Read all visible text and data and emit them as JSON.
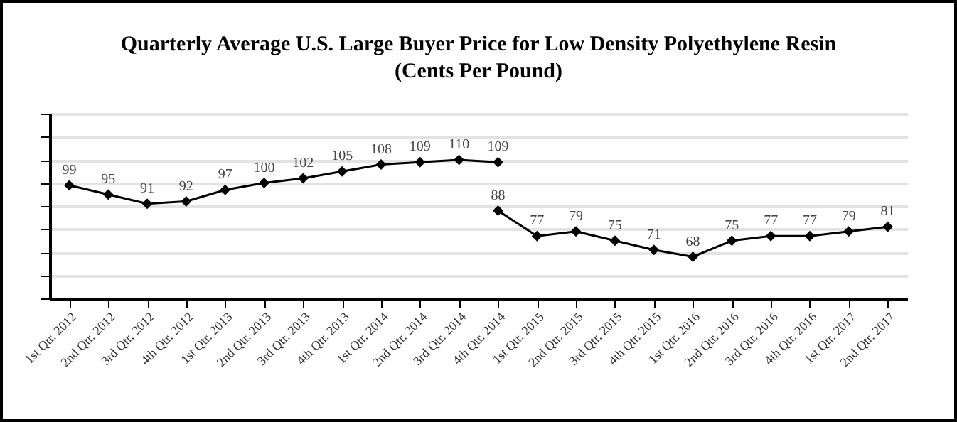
{
  "chart_data": {
    "type": "line",
    "title": "Quarterly Average U.S. Large Buyer Price for Low Density Polyethylene Resin",
    "subtitle": "(Cents Per Pound)",
    "categories": [
      "1st Qtr. 2012",
      "2nd Qtr. 2012",
      "3rd Qtr. 2012",
      "4th Qtr. 2012",
      "1st Qtr. 2013",
      "2nd Qtr. 2013",
      "3rd Qtr. 2013",
      "4th Qtr. 2013",
      "1st Qtr. 2014",
      "2nd Qtr. 2014",
      "3rd Qtr. 2014",
      "4th Qtr. 2014",
      "1st Qtr. 2015",
      "2nd Qtr. 2015",
      "3rd Qtr. 2015",
      "4th Qtr. 2015",
      "1st Qtr. 2016",
      "2nd Qtr. 2016",
      "3rd Qtr. 2016",
      "4th Qtr. 2016",
      "1st Qtr. 2017",
      "2nd Qtr. 2017"
    ],
    "series": [
      {
        "color": "#000000",
        "values": [
          99,
          95,
          91,
          92,
          97,
          100,
          102,
          105,
          108,
          109,
          110,
          109,
          null,
          null,
          null,
          null,
          null,
          null,
          null,
          null,
          null,
          null
        ]
      },
      {
        "color": "#000000",
        "values": [
          null,
          null,
          null,
          null,
          null,
          null,
          null,
          null,
          null,
          null,
          null,
          88,
          77,
          79,
          75,
          71,
          68,
          75,
          77,
          77,
          79,
          81
        ]
      }
    ],
    "ylim": [
      50,
      130
    ],
    "yticks": [
      {
        "value": 50,
        "label": null
      },
      {
        "value": 60,
        "label": null
      },
      {
        "value": 70,
        "label": null
      },
      {
        "value": 80,
        "label": null
      },
      {
        "value": 90,
        "label": null
      },
      {
        "value": 100,
        "label": null
      },
      {
        "value": 110,
        "label": null
      },
      {
        "value": 120,
        "label": null
      },
      {
        "value": 130,
        "label": null
      }
    ],
    "tick_labels": "x",
    "grid": "y",
    "marker": "diamond",
    "line_style": "solid",
    "data_labels": true
  }
}
